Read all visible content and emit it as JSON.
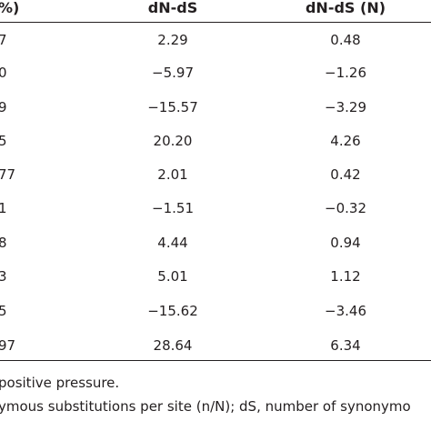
{
  "table": {
    "headers": [
      "%)",
      "dN-dS",
      "dN-dS (N)"
    ],
    "rows": [
      [
        "7",
        "2.29",
        "0.48"
      ],
      [
        "0",
        "−5.97",
        "−1.26"
      ],
      [
        "9",
        "−15.57",
        "−3.29"
      ],
      [
        "5",
        "20.20",
        "4.26"
      ],
      [
        "77",
        "2.01",
        "0.42"
      ],
      [
        "1",
        "−1.51",
        "−0.32"
      ],
      [
        "8",
        "4.44",
        "0.94"
      ],
      [
        "3",
        "5.01",
        "1.12"
      ],
      [
        "5",
        "−15.62",
        "−3.46"
      ],
      [
        "97",
        "28.64",
        "6.34"
      ]
    ]
  },
  "footnotes": [
    "positive pressure.",
    "ymous substitutions per site (n/N); dS, number of synonymo"
  ]
}
